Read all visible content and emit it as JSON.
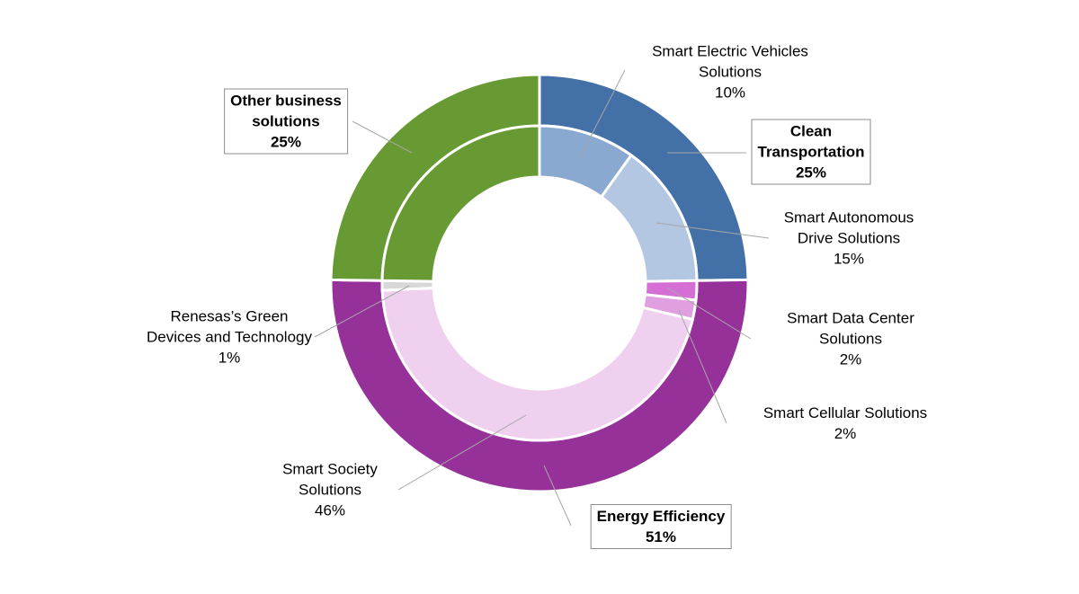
{
  "chart_data": {
    "type": "donut",
    "series": [
      {
        "categories": [
          "Clean\nTransportation",
          "Energy Efficiency",
          "Other business\nsolutions"
        ],
        "values": [
          25,
          51,
          25
        ],
        "value_labels": [
          "25%",
          "51%",
          "25%"
        ],
        "colors": [
          "#4470a8",
          "#96319a",
          "#679a33"
        ]
      },
      {
        "categories": [
          "Smart Electric Vehicles\nSolutions",
          "Smart Autonomous\nDrive Solutions",
          "Smart Data Center\nSolutions",
          "Smart Cellular Solutions",
          "Smart Society\nSolutions",
          "Renesas’s Green\nDevices and Technology",
          null
        ],
        "values": [
          10,
          15,
          2,
          2,
          46,
          1,
          25
        ],
        "value_labels": [
          "10%",
          "15%",
          "2%",
          "2%",
          "46%",
          "1%",
          null
        ],
        "colors": [
          "#8aa9d1",
          "#b3c6e2",
          "#d56fd5",
          "#e0a0df",
          "#f0d0ef",
          "#d8d8d8",
          "#679a33"
        ]
      }
    ]
  }
}
